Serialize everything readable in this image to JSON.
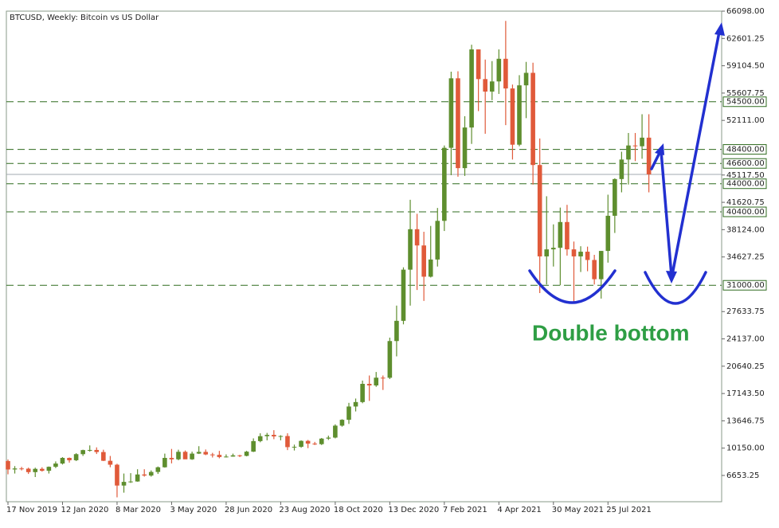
{
  "chart_data": {
    "type": "candlestick",
    "title": "BTCUSD, Weekly:  Bitcoin vs US Dollar",
    "annotation": "Double bottom",
    "up_color": "#5e8e2e",
    "down_color": "#e05a3a",
    "level_color": "#2f6b1f",
    "categories": [
      "17 Nov 2019",
      null,
      null,
      null,
      null,
      null,
      null,
      null,
      "12 Jan 2020",
      null,
      null,
      null,
      null,
      null,
      null,
      null,
      "8 Mar 2020",
      null,
      null,
      null,
      null,
      null,
      null,
      null,
      "3 May 2020",
      null,
      null,
      null,
      null,
      null,
      null,
      null,
      "28 Jun 2020",
      null,
      null,
      null,
      null,
      null,
      null,
      null,
      "23 Aug 2020",
      null,
      null,
      null,
      null,
      null,
      null,
      null,
      "18 Oct 2020",
      null,
      null,
      null,
      null,
      null,
      null,
      null,
      "13 Dec 2020",
      null,
      null,
      null,
      null,
      null,
      null,
      null,
      "7 Feb 2021",
      null,
      null,
      null,
      null,
      null,
      null,
      null,
      "4 Apr 2021",
      null,
      null,
      null,
      null,
      null,
      null,
      null,
      "30 May 2021",
      null,
      null,
      null,
      null,
      null,
      null,
      null,
      "25 Jul 2021",
      null,
      null,
      null,
      null,
      null,
      null
    ],
    "open": [
      8500,
      7420,
      7550,
      7520,
      7080,
      7500,
      7250,
      7760,
      8180,
      8900,
      8600,
      9380,
      9900,
      9920,
      9650,
      8530,
      8030,
      5360,
      5830,
      5880,
      6780,
      6640,
      7100,
      7700,
      8900,
      8720,
      9680,
      8720,
      9450,
      9670,
      9340,
      9290,
      9010,
      9070,
      9230,
      9160,
      9700,
      11050,
      11680,
      11850,
      11650,
      11700,
      10280,
      10320,
      11080,
      10730,
      10660,
      11370,
      11500,
      13030,
      13780,
      15480,
      16050,
      18380,
      18180,
      19170,
      19160,
      23860,
      26450,
      33000,
      38180,
      36100,
      32100,
      34300,
      39250,
      48600,
      57500,
      46000,
      51200,
      61200,
      57400,
      55800,
      57100,
      60000,
      56200,
      49000,
      56600,
      58200,
      46400,
      34700,
      35600,
      35800,
      39100,
      35600,
      34700,
      35300,
      34240,
      31780,
      35400,
      39900,
      44600,
      47100,
      48900,
      48800,
      49900
    ],
    "high": [
      8700,
      7850,
      7750,
      7650,
      7650,
      7700,
      7800,
      8450,
      9000,
      8950,
      9500,
      9950,
      10500,
      10250,
      9950,
      9150,
      8150,
      6900,
      6950,
      7450,
      7450,
      7300,
      7800,
      9450,
      10050,
      9950,
      9850,
      9700,
      10400,
      9980,
      9550,
      9800,
      9350,
      9450,
      9300,
      9800,
      11400,
      12050,
      12100,
      12450,
      11800,
      12050,
      10600,
      11150,
      11200,
      10950,
      11450,
      11750,
      13200,
      13850,
      15950,
      16500,
      18800,
      19450,
      19900,
      19450,
      24300,
      28400,
      33300,
      41950,
      40150,
      37850,
      38600,
      40900,
      48900,
      58350,
      58400,
      52650,
      61800,
      61200,
      59900,
      59700,
      61200,
      64850,
      56700,
      57900,
      59600,
      59500,
      49800,
      42400,
      38800,
      40950,
      41300,
      36600,
      36000,
      35950,
      34900,
      35400,
      42600,
      44700,
      48100,
      50500,
      50500,
      52900,
      52900
    ],
    "low": [
      6800,
      6900,
      7300,
      6850,
      6450,
      7150,
      6900,
      7600,
      8050,
      8300,
      8500,
      9150,
      9700,
      9400,
      8500,
      7700,
      3850,
      4450,
      5700,
      5850,
      6500,
      6500,
      6850,
      7650,
      8200,
      8600,
      8800,
      8650,
      9400,
      9250,
      8950,
      8850,
      8950,
      9050,
      9000,
      9100,
      9650,
      10900,
      11150,
      11300,
      11150,
      9900,
      9850,
      10200,
      10150,
      10550,
      10550,
      11200,
      11400,
      12900,
      13250,
      14850,
      15900,
      16200,
      18000,
      17600,
      19000,
      21900,
      26000,
      28400,
      30400,
      29000,
      32000,
      33400,
      37950,
      45100,
      44900,
      45000,
      49100,
      53300,
      50400,
      54700,
      55500,
      51500,
      47100,
      48800,
      52400,
      43900,
      30000,
      31100,
      33400,
      31000,
      34800,
      28800,
      32700,
      32800,
      31100,
      29300,
      33900,
      37700,
      42900,
      43900,
      46900,
      47200,
      42900
    ],
    "close": [
      7420,
      7550,
      7520,
      7080,
      7500,
      7250,
      7760,
      8180,
      8900,
      8600,
      9380,
      9900,
      9920,
      9650,
      8530,
      8030,
      5360,
      5830,
      5880,
      6780,
      6640,
      7100,
      7700,
      8900,
      8720,
      9680,
      8720,
      9450,
      9670,
      9340,
      9290,
      9010,
      9070,
      9230,
      9160,
      9700,
      11050,
      11680,
      11850,
      11650,
      11700,
      10280,
      10320,
      11080,
      10730,
      10660,
      11370,
      11500,
      13030,
      13780,
      15480,
      16050,
      18380,
      18180,
      19170,
      19160,
      23860,
      26450,
      33000,
      38180,
      36100,
      32100,
      34300,
      39250,
      48600,
      57500,
      46000,
      51200,
      61200,
      57400,
      55800,
      57100,
      60000,
      56200,
      49000,
      56600,
      58200,
      46400,
      34700,
      35600,
      35800,
      39100,
      35600,
      34700,
      35300,
      34240,
      31780,
      35400,
      39900,
      44600,
      47100,
      48900,
      48800,
      49900,
      45200
    ],
    "ylim": [
      3290,
      66098
    ],
    "yticks": [
      {
        "value": 66098,
        "label": "66098.00"
      },
      {
        "value": 62601.25,
        "label": "62601.25"
      },
      {
        "value": 59104.5,
        "label": "59104.50"
      },
      {
        "value": 55607.75,
        "label": "55607.75"
      },
      {
        "value": 52111,
        "label": "52111.00"
      },
      {
        "value": 45117.5,
        "label": "45117.50"
      },
      {
        "value": 41620.75,
        "label": "41620.75"
      },
      {
        "value": 38124,
        "label": "38124.00"
      },
      {
        "value": 34627.25,
        "label": "34627.25"
      },
      {
        "value": 27633.75,
        "label": "27633.75"
      },
      {
        "value": 24137,
        "label": "24137.00"
      },
      {
        "value": 20640.25,
        "label": "20640.25"
      },
      {
        "value": 17143.5,
        "label": "17143.50"
      },
      {
        "value": 13646.75,
        "label": "13646.75"
      },
      {
        "value": 10150,
        "label": "10150.00"
      },
      {
        "value": 6653.25,
        "label": "6653.25"
      }
    ],
    "levels": [
      {
        "value": 54500,
        "label": "54500.00"
      },
      {
        "value": 48400,
        "label": "48400.00"
      },
      {
        "value": 46600,
        "label": "46600.00"
      },
      {
        "value": 44000,
        "label": "44000.00"
      },
      {
        "value": 40400,
        "label": "40400.00"
      },
      {
        "value": 31000,
        "label": "31000.00"
      }
    ]
  }
}
